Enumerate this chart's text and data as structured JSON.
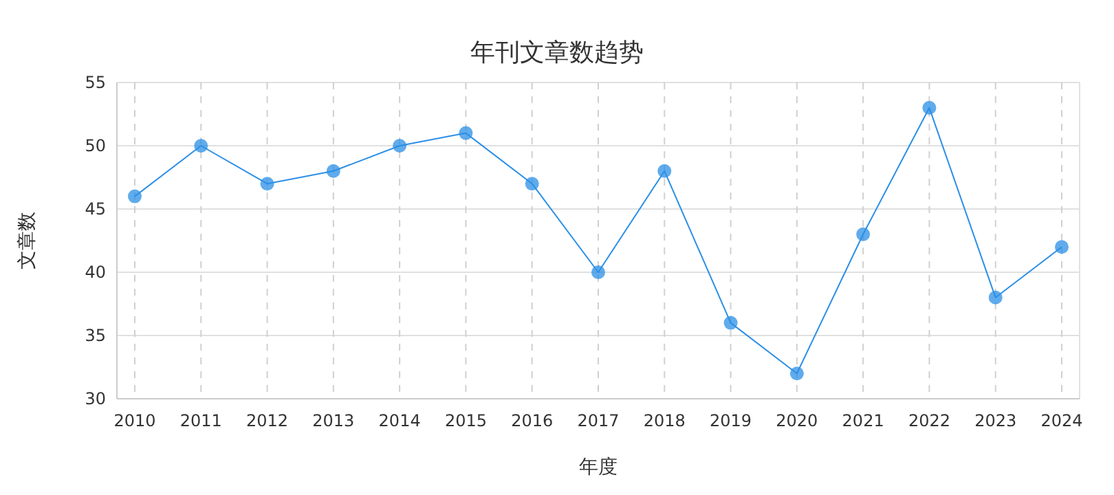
{
  "chart_data": {
    "type": "line",
    "title": "年刊文章数趋势",
    "xlabel": "年度",
    "ylabel": "文章数",
    "categories": [
      "2010",
      "2011",
      "2012",
      "2013",
      "2014",
      "2015",
      "2016",
      "2017",
      "2018",
      "2019",
      "2020",
      "2021",
      "2022",
      "2023",
      "2024"
    ],
    "series": [
      {
        "color": "#2b8fe6",
        "values": [
          46,
          50,
          47,
          48,
          50,
          51,
          47,
          40,
          48,
          36,
          32,
          43,
          53,
          38,
          42
        ]
      }
    ],
    "ylim": [
      30,
      55
    ],
    "yticks": [
      30,
      35,
      40,
      45,
      50,
      55
    ],
    "grid": true,
    "marker": "circle",
    "line_style": "solid"
  }
}
